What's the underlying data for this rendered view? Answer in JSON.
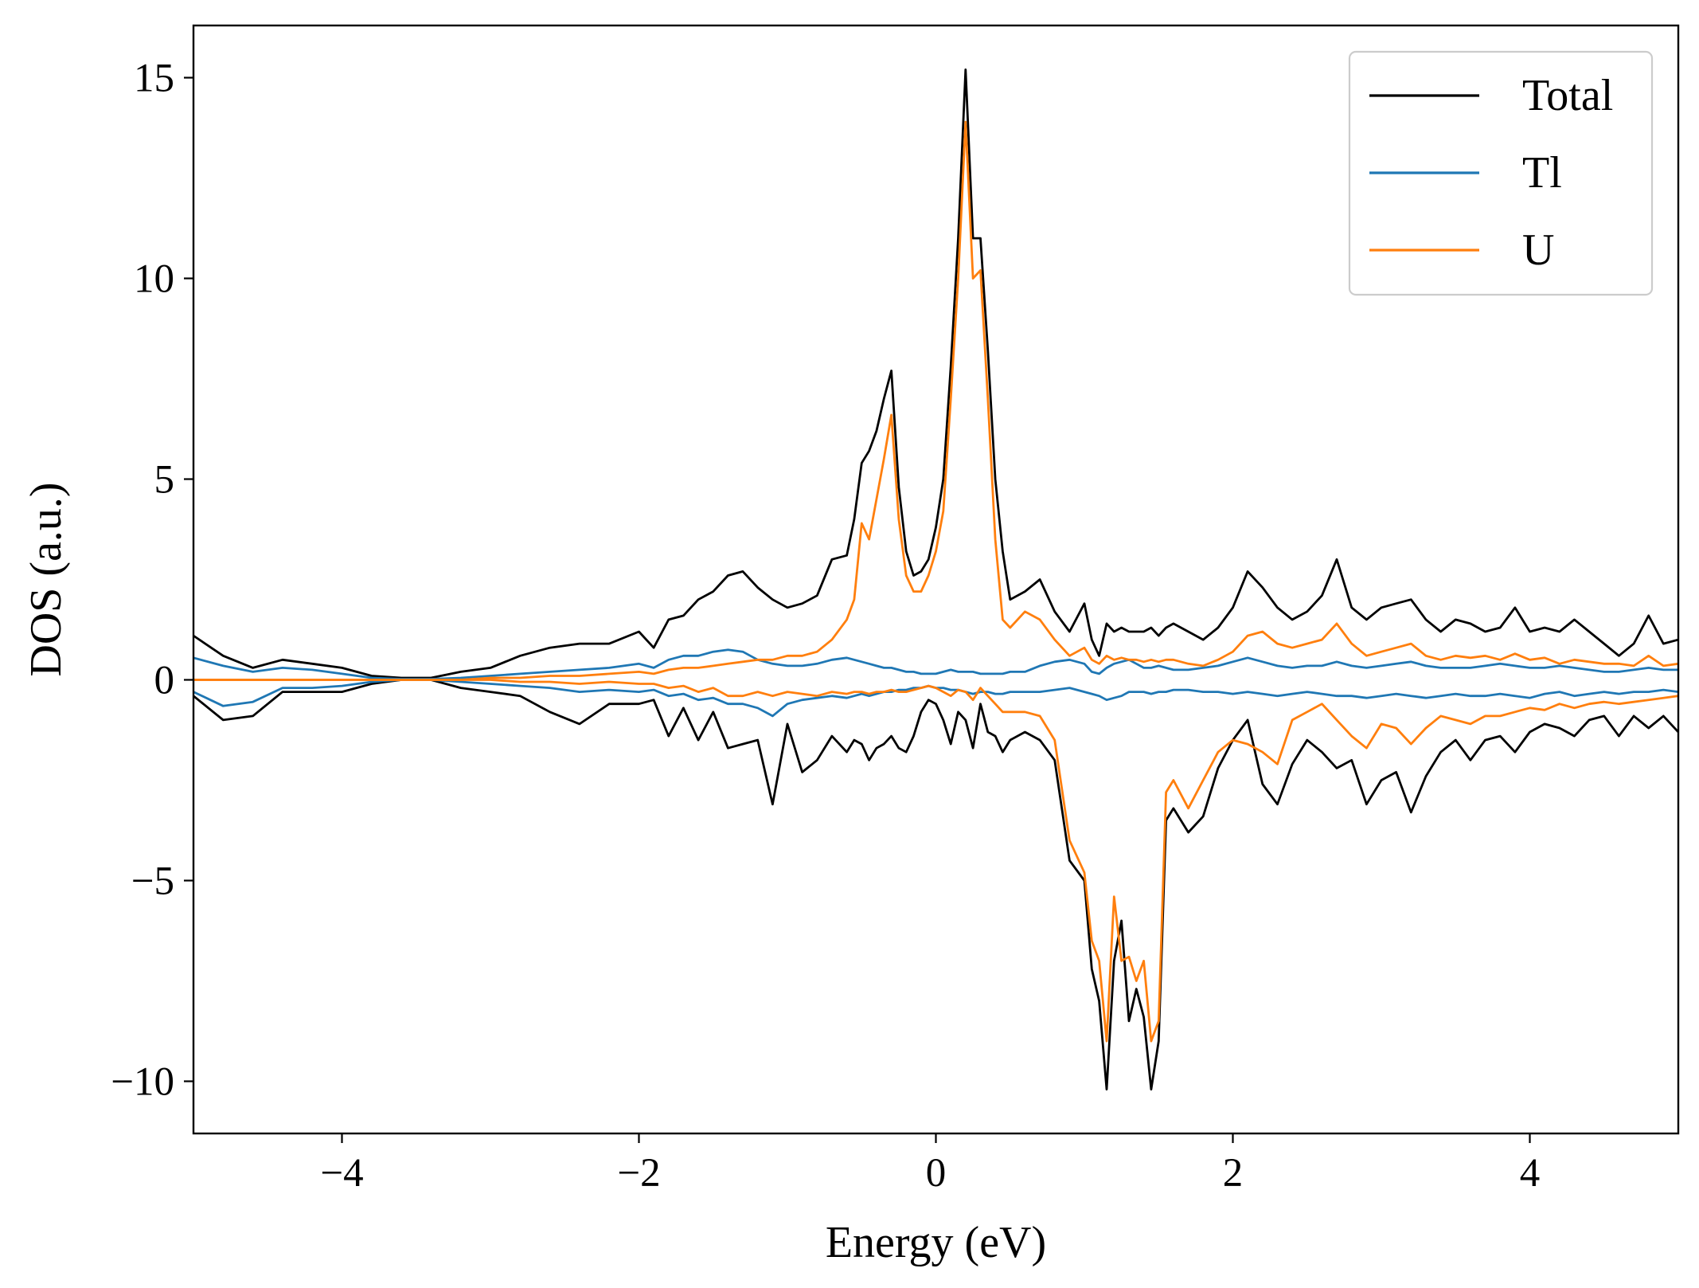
{
  "chart_data": {
    "type": "line",
    "title": "",
    "xlabel": "Energy (eV)",
    "ylabel": "DOS (a.u.)",
    "xlim": [
      -5,
      5
    ],
    "ylim": [
      -11.3,
      16.3
    ],
    "xticks": [
      -4,
      -2,
      0,
      2,
      4
    ],
    "yticks": [
      -10,
      -5,
      0,
      5,
      10,
      15
    ],
    "xtick_labels": [
      "−4",
      "−2",
      "0",
      "2",
      "4"
    ],
    "ytick_labels": [
      "−10",
      "−5",
      "0",
      "5",
      "10",
      "15"
    ],
    "grid": false,
    "legend_position": "top-right",
    "x": [
      -5.0,
      -4.8,
      -4.6,
      -4.4,
      -4.2,
      -4.0,
      -3.8,
      -3.6,
      -3.4,
      -3.2,
      -3.0,
      -2.8,
      -2.6,
      -2.4,
      -2.2,
      -2.0,
      -1.9,
      -1.8,
      -1.7,
      -1.6,
      -1.5,
      -1.4,
      -1.3,
      -1.2,
      -1.1,
      -1.0,
      -0.9,
      -0.8,
      -0.7,
      -0.6,
      -0.55,
      -0.5,
      -0.45,
      -0.4,
      -0.35,
      -0.3,
      -0.25,
      -0.2,
      -0.15,
      -0.1,
      -0.05,
      0.0,
      0.05,
      0.1,
      0.15,
      0.2,
      0.25,
      0.3,
      0.35,
      0.4,
      0.45,
      0.5,
      0.6,
      0.7,
      0.8,
      0.9,
      1.0,
      1.05,
      1.1,
      1.15,
      1.2,
      1.25,
      1.3,
      1.35,
      1.4,
      1.45,
      1.5,
      1.55,
      1.6,
      1.7,
      1.8,
      1.9,
      2.0,
      2.1,
      2.2,
      2.3,
      2.4,
      2.5,
      2.6,
      2.7,
      2.8,
      2.9,
      3.0,
      3.1,
      3.2,
      3.3,
      3.4,
      3.5,
      3.6,
      3.7,
      3.8,
      3.9,
      4.0,
      4.1,
      4.2,
      4.3,
      4.4,
      4.5,
      4.6,
      4.7,
      4.8,
      4.9,
      5.0
    ],
    "series": [
      {
        "name": "Total",
        "color": "#000000",
        "up": [
          1.1,
          0.6,
          0.3,
          0.5,
          0.4,
          0.3,
          0.1,
          0.05,
          0.05,
          0.2,
          0.3,
          0.6,
          0.8,
          0.9,
          0.9,
          1.2,
          0.8,
          1.5,
          1.6,
          2.0,
          2.2,
          2.6,
          2.7,
          2.3,
          2.0,
          1.8,
          1.9,
          2.1,
          3.0,
          3.1,
          4.0,
          5.4,
          5.7,
          6.2,
          7.0,
          7.7,
          4.8,
          3.2,
          2.6,
          2.7,
          3.0,
          3.8,
          5.0,
          7.8,
          11.0,
          15.2,
          11.0,
          11.0,
          8.2,
          5.0,
          3.2,
          2.0,
          2.2,
          2.5,
          1.7,
          1.2,
          1.9,
          1.0,
          0.6,
          1.4,
          1.2,
          1.3,
          1.2,
          1.2,
          1.2,
          1.3,
          1.1,
          1.3,
          1.4,
          1.2,
          1.0,
          1.3,
          1.8,
          2.7,
          2.3,
          1.8,
          1.5,
          1.7,
          2.1,
          3.0,
          1.8,
          1.5,
          1.8,
          1.9,
          2.0,
          1.5,
          1.2,
          1.5,
          1.4,
          1.2,
          1.3,
          1.8,
          1.2,
          1.3,
          1.2,
          1.5,
          1.2,
          0.9,
          0.6,
          0.9,
          1.6,
          0.9,
          1.0
        ],
        "down": [
          -0.4,
          -1.0,
          -0.9,
          -0.3,
          -0.3,
          -0.3,
          -0.1,
          0.0,
          0.0,
          -0.2,
          -0.3,
          -0.4,
          -0.8,
          -1.1,
          -0.6,
          -0.6,
          -0.5,
          -1.4,
          -0.7,
          -1.5,
          -0.8,
          -1.7,
          -1.6,
          -1.5,
          -3.1,
          -1.1,
          -2.3,
          -2.0,
          -1.4,
          -1.8,
          -1.5,
          -1.6,
          -2.0,
          -1.7,
          -1.6,
          -1.4,
          -1.7,
          -1.8,
          -1.4,
          -0.8,
          -0.5,
          -0.6,
          -1.0,
          -1.6,
          -0.8,
          -1.0,
          -1.7,
          -0.6,
          -1.3,
          -1.4,
          -1.8,
          -1.5,
          -1.3,
          -1.5,
          -2.0,
          -4.5,
          -5.0,
          -7.2,
          -8.0,
          -10.2,
          -7.0,
          -6.0,
          -8.5,
          -7.7,
          -8.4,
          -10.2,
          -9.0,
          -3.5,
          -3.2,
          -3.8,
          -3.4,
          -2.2,
          -1.5,
          -1.0,
          -2.6,
          -3.1,
          -2.1,
          -1.5,
          -1.8,
          -2.2,
          -2.0,
          -3.1,
          -2.5,
          -2.3,
          -3.3,
          -2.4,
          -1.8,
          -1.5,
          -2.0,
          -1.5,
          -1.4,
          -1.8,
          -1.3,
          -1.1,
          -1.2,
          -1.4,
          -1.0,
          -0.9,
          -1.4,
          -0.9,
          -1.2,
          -0.9,
          -1.3
        ]
      },
      {
        "name": "Tl",
        "color": "#1f77b4",
        "up": [
          0.55,
          0.35,
          0.2,
          0.3,
          0.25,
          0.15,
          0.05,
          0.02,
          0.02,
          0.05,
          0.1,
          0.15,
          0.2,
          0.25,
          0.3,
          0.4,
          0.3,
          0.5,
          0.6,
          0.6,
          0.7,
          0.75,
          0.7,
          0.5,
          0.4,
          0.35,
          0.35,
          0.4,
          0.5,
          0.55,
          0.5,
          0.45,
          0.4,
          0.35,
          0.3,
          0.3,
          0.25,
          0.2,
          0.2,
          0.15,
          0.15,
          0.15,
          0.2,
          0.25,
          0.2,
          0.2,
          0.2,
          0.15,
          0.15,
          0.15,
          0.15,
          0.2,
          0.2,
          0.35,
          0.45,
          0.5,
          0.4,
          0.2,
          0.15,
          0.3,
          0.4,
          0.45,
          0.5,
          0.4,
          0.3,
          0.3,
          0.35,
          0.3,
          0.25,
          0.25,
          0.3,
          0.35,
          0.45,
          0.55,
          0.45,
          0.35,
          0.3,
          0.35,
          0.35,
          0.45,
          0.35,
          0.3,
          0.35,
          0.4,
          0.45,
          0.35,
          0.3,
          0.3,
          0.3,
          0.35,
          0.4,
          0.35,
          0.3,
          0.3,
          0.35,
          0.3,
          0.25,
          0.2,
          0.2,
          0.25,
          0.3,
          0.25,
          0.25
        ],
        "down": [
          -0.3,
          -0.65,
          -0.55,
          -0.2,
          -0.2,
          -0.15,
          -0.05,
          0.0,
          0.0,
          -0.05,
          -0.1,
          -0.15,
          -0.2,
          -0.3,
          -0.25,
          -0.3,
          -0.25,
          -0.4,
          -0.35,
          -0.5,
          -0.45,
          -0.6,
          -0.6,
          -0.7,
          -0.9,
          -0.6,
          -0.5,
          -0.45,
          -0.4,
          -0.45,
          -0.4,
          -0.35,
          -0.4,
          -0.35,
          -0.3,
          -0.3,
          -0.25,
          -0.25,
          -0.2,
          -0.2,
          -0.15,
          -0.2,
          -0.2,
          -0.25,
          -0.25,
          -0.3,
          -0.35,
          -0.3,
          -0.3,
          -0.35,
          -0.35,
          -0.3,
          -0.3,
          -0.3,
          -0.25,
          -0.2,
          -0.3,
          -0.35,
          -0.4,
          -0.5,
          -0.45,
          -0.4,
          -0.3,
          -0.3,
          -0.3,
          -0.35,
          -0.3,
          -0.3,
          -0.25,
          -0.25,
          -0.3,
          -0.3,
          -0.35,
          -0.3,
          -0.35,
          -0.4,
          -0.35,
          -0.3,
          -0.35,
          -0.4,
          -0.4,
          -0.45,
          -0.4,
          -0.35,
          -0.4,
          -0.45,
          -0.4,
          -0.35,
          -0.4,
          -0.4,
          -0.35,
          -0.4,
          -0.45,
          -0.35,
          -0.3,
          -0.4,
          -0.35,
          -0.3,
          -0.35,
          -0.3,
          -0.3,
          -0.25,
          -0.3
        ]
      },
      {
        "name": "U",
        "color": "#ff7f0e",
        "up": [
          0.0,
          0.0,
          0.0,
          0.0,
          0.0,
          0.0,
          0.0,
          0.0,
          0.0,
          0.0,
          0.05,
          0.05,
          0.1,
          0.1,
          0.15,
          0.2,
          0.15,
          0.25,
          0.3,
          0.3,
          0.35,
          0.4,
          0.45,
          0.5,
          0.5,
          0.6,
          0.6,
          0.7,
          1.0,
          1.5,
          2.0,
          3.9,
          3.5,
          4.5,
          5.5,
          6.6,
          4.0,
          2.6,
          2.2,
          2.2,
          2.6,
          3.2,
          4.2,
          7.0,
          10.0,
          13.9,
          10.0,
          10.2,
          7.0,
          3.5,
          1.5,
          1.3,
          1.7,
          1.5,
          1.0,
          0.6,
          0.8,
          0.5,
          0.4,
          0.6,
          0.5,
          0.55,
          0.5,
          0.5,
          0.45,
          0.5,
          0.45,
          0.5,
          0.5,
          0.4,
          0.35,
          0.5,
          0.7,
          1.1,
          1.2,
          0.9,
          0.8,
          0.9,
          1.0,
          1.4,
          0.9,
          0.6,
          0.7,
          0.8,
          0.9,
          0.6,
          0.5,
          0.6,
          0.55,
          0.6,
          0.5,
          0.65,
          0.5,
          0.55,
          0.4,
          0.5,
          0.45,
          0.4,
          0.4,
          0.35,
          0.6,
          0.35,
          0.4
        ],
        "down": [
          0.0,
          0.0,
          0.0,
          0.0,
          0.0,
          0.0,
          0.0,
          0.0,
          0.0,
          0.0,
          0.0,
          -0.05,
          -0.05,
          -0.1,
          -0.05,
          -0.1,
          -0.1,
          -0.2,
          -0.15,
          -0.3,
          -0.2,
          -0.4,
          -0.4,
          -0.3,
          -0.4,
          -0.3,
          -0.35,
          -0.4,
          -0.3,
          -0.35,
          -0.3,
          -0.3,
          -0.35,
          -0.3,
          -0.3,
          -0.25,
          -0.3,
          -0.3,
          -0.25,
          -0.2,
          -0.15,
          -0.2,
          -0.3,
          -0.4,
          -0.25,
          -0.3,
          -0.5,
          -0.2,
          -0.4,
          -0.6,
          -0.8,
          -0.8,
          -0.8,
          -0.9,
          -1.5,
          -4.0,
          -4.8,
          -6.5,
          -7.0,
          -9.0,
          -5.4,
          -7.0,
          -6.9,
          -7.5,
          -7.0,
          -9.0,
          -8.5,
          -2.8,
          -2.5,
          -3.2,
          -2.5,
          -1.8,
          -1.5,
          -1.6,
          -1.8,
          -2.1,
          -1.0,
          -0.8,
          -0.6,
          -1.0,
          -1.4,
          -1.7,
          -1.1,
          -1.2,
          -1.6,
          -1.2,
          -0.9,
          -1.0,
          -1.1,
          -0.9,
          -0.9,
          -0.8,
          -0.7,
          -0.75,
          -0.6,
          -0.7,
          -0.6,
          -0.55,
          -0.6,
          -0.55,
          -0.5,
          -0.45,
          -0.4
        ]
      }
    ]
  }
}
